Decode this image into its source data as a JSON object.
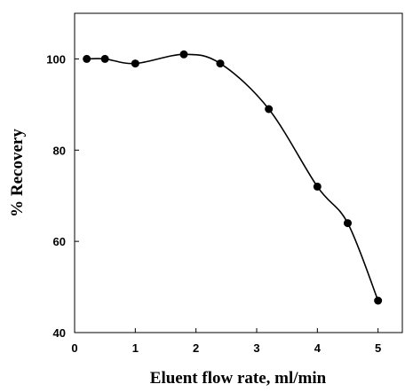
{
  "chart_data": {
    "type": "line",
    "title": "",
    "xlabel": "Eluent flow rate, ml/min",
    "ylabel": "% Recovery",
    "xlim": [
      0,
      5.4
    ],
    "ylim": [
      40,
      110
    ],
    "x_ticks": [
      "0",
      "1",
      "2",
      "3",
      "4",
      "5"
    ],
    "y_ticks": [
      "40",
      "60",
      "80",
      "100"
    ],
    "grid": false,
    "legend": "none",
    "series": [
      {
        "x": [
          0.2,
          0.5,
          1.0,
          1.8,
          2.4,
          3.2,
          4.0,
          4.5,
          5.0
        ],
        "y": [
          100,
          100,
          99,
          101,
          99,
          89,
          72,
          64,
          47
        ],
        "marker": "filled-circle",
        "color": "#000000",
        "smooth": true
      }
    ]
  }
}
